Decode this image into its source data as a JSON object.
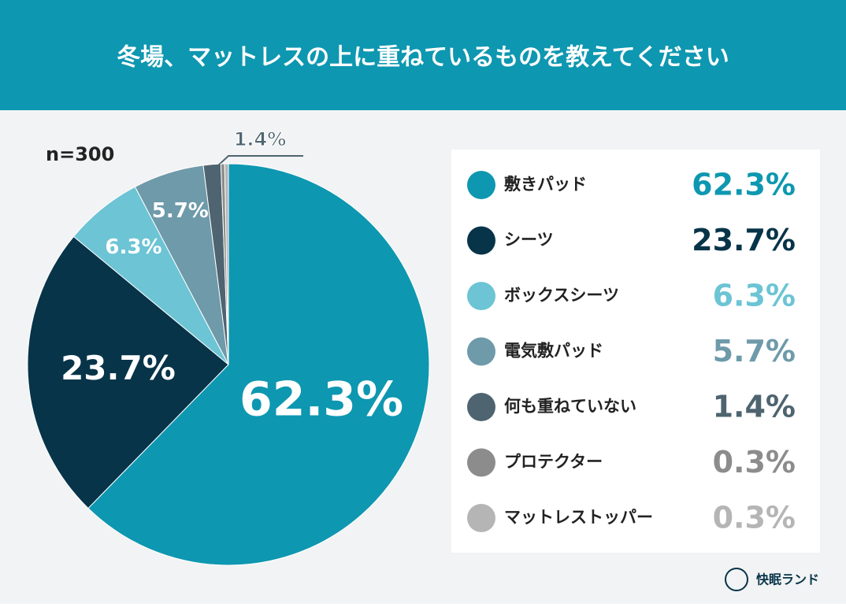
{
  "chart_data": {
    "type": "pie",
    "title": "冬場、マットレスの上に重ねているものを教えてください",
    "note": "n=300",
    "brand": "快眠ランド",
    "categories": [
      "敷きパッド",
      "シーツ",
      "ボックスシーツ",
      "電気敷パッド",
      "何も重ねていない",
      "プロテクター",
      "マットレストッパー"
    ],
    "values": [
      62.3,
      23.7,
      6.3,
      5.7,
      1.4,
      0.3,
      0.3
    ],
    "value_labels": [
      "62.3%",
      "23.7%",
      "6.3%",
      "5.7%",
      "1.4%",
      "0.3%",
      "0.3%"
    ],
    "colors": [
      "#0e97b0",
      "#073449",
      "#6cc4d4",
      "#6e9aaa",
      "#4e6470",
      "#8c8c8c",
      "#b5b5b5"
    ],
    "legend": "right"
  }
}
